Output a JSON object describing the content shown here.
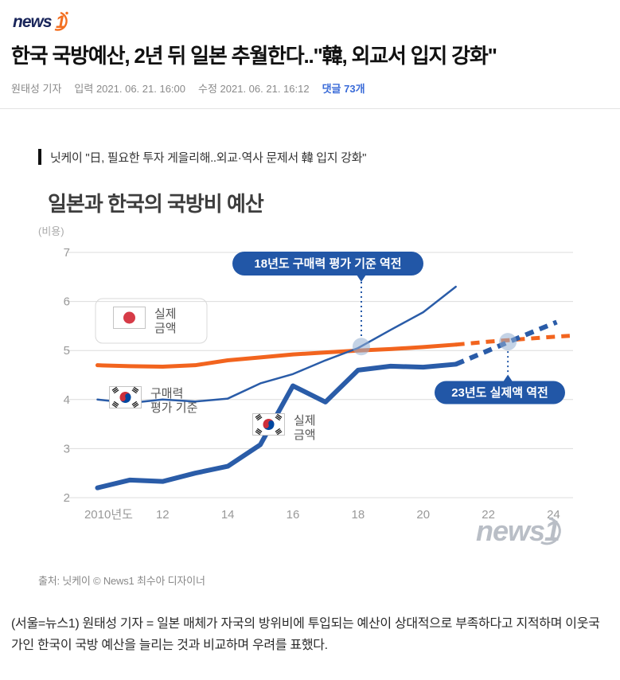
{
  "header": {
    "logo": {
      "news": "news",
      "one": "1"
    },
    "headline": "한국 국방예산, 2년 뒤 일본 추월한다..\"韓, 외교서 입지 강화\"",
    "reporter": "원태성 기자",
    "published": "입력 2021. 06. 21. 16:00",
    "modified": "수정 2021. 06. 21. 16:12",
    "comments": "댓글 73개"
  },
  "quote": "닛케이 \"日, 필요한 투자 게을리해..외교·역사 문제서 韓 입지 강화\"",
  "chart_data": {
    "type": "line",
    "title": "일본과 한국의 국방비 예산",
    "ylabel": "(비용)",
    "ylim": [
      2,
      7
    ],
    "yticks": [
      7,
      6,
      5,
      4,
      3,
      2
    ],
    "xlim": [
      2009.5,
      2024.6
    ],
    "xticks": [
      2010,
      2012,
      2014,
      2016,
      2018,
      2020,
      2022,
      2024
    ],
    "xtick_labels": [
      "2010년도",
      "12",
      "14",
      "16",
      "18",
      "20",
      "22",
      "24"
    ],
    "grid": true,
    "series": [
      {
        "name": "japan-actual",
        "flag": "japan",
        "label_lines": [
          "실제",
          "금액"
        ],
        "color": "#f2641e",
        "width": 5,
        "years": [
          2010,
          2011,
          2012,
          2013,
          2014,
          2015,
          2016,
          2017,
          2018,
          2019,
          2020,
          2021
        ],
        "values": [
          4.7,
          4.68,
          4.67,
          4.7,
          4.8,
          4.86,
          4.92,
          4.96,
          5.0,
          5.03,
          5.07,
          5.12
        ],
        "dash_years": [
          2021,
          2022,
          2023,
          2024,
          2024.5
        ],
        "dash_values": [
          5.12,
          5.18,
          5.23,
          5.28,
          5.3
        ]
      },
      {
        "name": "korea-ppp",
        "flag": "korea",
        "label_lines": [
          "구매력",
          "평가 기준"
        ],
        "color": "#2a5ca8",
        "width": 2.5,
        "years": [
          2010,
          2011,
          2012,
          2013,
          2014,
          2015,
          2016,
          2017,
          2018,
          2019,
          2020,
          2021
        ],
        "values": [
          4.0,
          3.93,
          4.0,
          3.96,
          4.02,
          4.33,
          4.52,
          4.8,
          5.05,
          5.42,
          5.78,
          6.3
        ]
      },
      {
        "name": "korea-actual",
        "flag": "korea",
        "label_lines": [
          "실제",
          "금액"
        ],
        "color": "#2a5ca8",
        "width": 6,
        "years": [
          2010,
          2011,
          2012,
          2013,
          2014,
          2015,
          2016,
          2017,
          2018,
          2019,
          2020,
          2021
        ],
        "values": [
          2.2,
          2.36,
          2.33,
          2.5,
          2.64,
          3.08,
          4.28,
          3.95,
          4.6,
          4.68,
          4.66,
          4.72
        ],
        "dash_years": [
          2021,
          2022,
          2023,
          2024.1
        ],
        "dash_values": [
          4.72,
          5.0,
          5.28,
          5.58
        ]
      }
    ],
    "annotations": [
      {
        "text": "18년도 구매력 평가 기준 역전",
        "x": 2018.1,
        "y": 5.08
      },
      {
        "text": "23년도 실제액 역전",
        "x": 2022.6,
        "y": 5.18
      }
    ],
    "annotation_color": "#2257a7",
    "watermark": "news1"
  },
  "caption": "출처: 닛케이 © News1 최수아 디자이너",
  "body": "(서울=뉴스1) 원태성 기자 = 일본 매체가 자국의 방위비에 투입되는 예산이 상대적으로 부족하다고 지적하며 이웃국가인 한국이 국방 예산을 늘리는 것과 비교하며 우려를 표했다."
}
